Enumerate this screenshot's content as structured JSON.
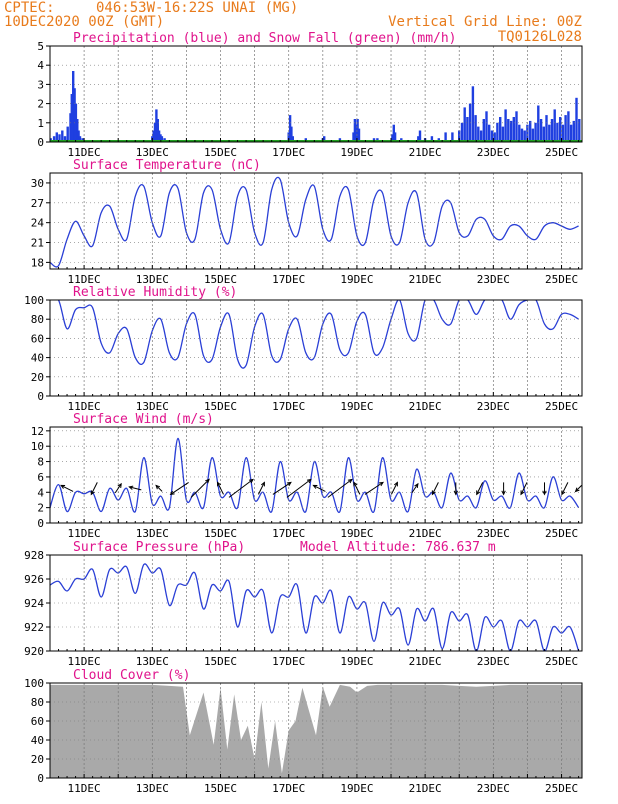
{
  "header": {
    "source": "CPTEC:",
    "location": "046:53W-16:22S  UNAI (MG)",
    "run_date": "10DEC2020 00Z (GMT)",
    "grid_note": "Vertical Grid Line: 00Z",
    "code": "TQ0126L028"
  },
  "colors": {
    "header": "#e87b1c",
    "title": "#e0138c",
    "precip": "#1f3fe0",
    "snow": "#1fa01f",
    "line": "#2a3fd6",
    "cloud": "#a9a9a9",
    "arrow": "#000000"
  },
  "chart_data": [
    {
      "id": "precip",
      "type": "bar",
      "title": "Precipitation (blue) and Snow Fall (green) (mm/h)",
      "x_unit": "day index from 10DEC 00Z",
      "xlim": [
        0,
        15.6
      ],
      "ylim": [
        0,
        5
      ],
      "yticks": [
        0,
        1,
        2,
        3,
        4,
        5
      ],
      "x": [
        0.02,
        0.12,
        0.2,
        0.28,
        0.36,
        0.44,
        0.52,
        0.6,
        0.64,
        0.68,
        0.72,
        0.76,
        0.8,
        0.84,
        0.88,
        0.96,
        1.04,
        1.12,
        1.3,
        3.0,
        3.04,
        3.08,
        3.12,
        3.16,
        3.2,
        3.24,
        3.28,
        3.36,
        3.44,
        4.0,
        5.2,
        7.0,
        7.04,
        7.08,
        7.12,
        7.5,
        8.0,
        8.04,
        8.5,
        8.9,
        8.94,
        8.98,
        9.02,
        9.06,
        9.5,
        9.6,
        10.04,
        10.08,
        10.12,
        10.3,
        10.8,
        10.85,
        11.0,
        11.2,
        11.4,
        11.6,
        11.8,
        12.0,
        12.08,
        12.16,
        12.24,
        12.32,
        12.4,
        12.48,
        12.56,
        12.64,
        12.72,
        12.8,
        12.88,
        12.96,
        13.04,
        13.12,
        13.2,
        13.28,
        13.36,
        13.44,
        13.52,
        13.6,
        13.68,
        13.76,
        13.84,
        13.92,
        14.0,
        14.08,
        14.16,
        14.24,
        14.32,
        14.4,
        14.48,
        14.56,
        14.64,
        14.72,
        14.8,
        14.88,
        14.96,
        15.04,
        15.12,
        15.2,
        15.28,
        15.36,
        15.44,
        15.52
      ],
      "precip": [
        0.2,
        0.3,
        0.5,
        0.4,
        0.6,
        0.3,
        0.8,
        1.5,
        2.5,
        3.7,
        2.8,
        2.0,
        1.2,
        0.6,
        0.3,
        0.2,
        0.1,
        0.1,
        0.1,
        0.3,
        0.6,
        1.0,
        1.7,
        1.2,
        0.6,
        0.4,
        0.3,
        0.2,
        0.1,
        0.1,
        0.1,
        0.5,
        1.4,
        0.8,
        0.3,
        0.2,
        0.2,
        0.3,
        0.2,
        0.5,
        1.2,
        0.9,
        1.2,
        0.7,
        0.2,
        0.2,
        0.4,
        0.9,
        0.5,
        0.2,
        0.3,
        0.6,
        0.2,
        0.3,
        0.2,
        0.5,
        0.5,
        0.6,
        1.0,
        1.8,
        1.3,
        2.0,
        2.9,
        1.4,
        0.8,
        0.6,
        1.2,
        1.6,
        0.9,
        0.6,
        0.5,
        1.0,
        1.3,
        0.8,
        1.7,
        1.2,
        1.1,
        1.3,
        1.6,
        0.9,
        0.7,
        0.6,
        0.9,
        1.1,
        0.7,
        1.0,
        1.9,
        1.2,
        0.8,
        1.4,
        0.9,
        1.2,
        1.7,
        1.0,
        1.3,
        0.9,
        1.4,
        1.6,
        0.9,
        1.1,
        2.3,
        1.2
      ],
      "snow": 0
    },
    {
      "id": "temperature",
      "type": "line",
      "title": "Surface Temperature (nC)",
      "xlim": [
        0,
        15.6
      ],
      "ylim": [
        17,
        31.5
      ],
      "yticks": [
        18,
        21,
        24,
        27,
        30
      ],
      "hours": [
        0,
        6,
        12,
        18
      ],
      "daily": [
        [
          18.0,
          17.5,
          21.5,
          24.2
        ],
        [
          22.0,
          20.5,
          25.5,
          26.5
        ],
        [
          23.0,
          21.5,
          28.0,
          29.5
        ],
        [
          24.0,
          22.0,
          28.5,
          29.2
        ],
        [
          22.5,
          21.5,
          28.5,
          29.0
        ],
        [
          23.0,
          21.0,
          28.0,
          29.0
        ],
        [
          22.5,
          21.0,
          29.0,
          30.5
        ],
        [
          24.0,
          22.0,
          27.5,
          29.5
        ],
        [
          23.0,
          21.5,
          28.0,
          29.0
        ],
        [
          22.0,
          21.0,
          27.5,
          28.5
        ],
        [
          22.0,
          21.0,
          27.0,
          28.5
        ],
        [
          21.5,
          21.0,
          26.5,
          27.0
        ],
        [
          22.5,
          22.0,
          24.5,
          24.5
        ],
        [
          22.0,
          21.5,
          23.5,
          23.5
        ],
        [
          22.0,
          21.5,
          23.5,
          24.0
        ],
        [
          23.5,
          23.0,
          23.5,
          23.5
        ]
      ]
    },
    {
      "id": "humidity",
      "type": "line",
      "title": "Relative Humidity (%)",
      "xlim": [
        0,
        15.6
      ],
      "ylim": [
        0,
        100
      ],
      "yticks": [
        0,
        20,
        40,
        60,
        80,
        100
      ],
      "hours": [
        0,
        6,
        12,
        18
      ],
      "daily": [
        [
          100,
          100,
          70,
          90
        ],
        [
          92,
          92,
          55,
          45
        ],
        [
          65,
          70,
          40,
          35
        ],
        [
          68,
          80,
          45,
          40
        ],
        [
          75,
          85,
          42,
          38
        ],
        [
          72,
          85,
          38,
          32
        ],
        [
          72,
          85,
          42,
          38
        ],
        [
          70,
          80,
          45,
          40
        ],
        [
          75,
          85,
          48,
          45
        ],
        [
          78,
          85,
          45,
          50
        ],
        [
          80,
          100,
          65,
          60
        ],
        [
          100,
          100,
          80,
          75
        ],
        [
          100,
          100,
          85,
          100
        ],
        [
          100,
          100,
          80,
          95
        ],
        [
          100,
          100,
          75,
          70
        ],
        [
          85,
          85,
          80,
          80
        ]
      ]
    },
    {
      "id": "wind",
      "type": "line",
      "title": "Surface Wind (m/s)",
      "xlim": [
        0,
        15.6
      ],
      "ylim": [
        0,
        12.5
      ],
      "yticks": [
        0,
        2,
        4,
        6,
        8,
        10,
        12
      ],
      "hours": [
        0,
        6,
        12,
        18
      ],
      "daily": [
        [
          2.0,
          5.0,
          1.5,
          4.0
        ],
        [
          3.8,
          4.0,
          1.5,
          4.5
        ],
        [
          3.0,
          4.5,
          1.5,
          8.5
        ],
        [
          2.5,
          3.5,
          2.0,
          11.0
        ],
        [
          3.0,
          4.0,
          2.0,
          8.5
        ],
        [
          3.5,
          4.0,
          2.0,
          8.5
        ],
        [
          3.0,
          4.0,
          1.5,
          8.0
        ],
        [
          3.0,
          4.0,
          1.5,
          8.0
        ],
        [
          3.5,
          4.0,
          1.5,
          8.5
        ],
        [
          3.0,
          4.0,
          1.5,
          8.5
        ],
        [
          3.0,
          4.0,
          1.5,
          7.0
        ],
        [
          3.5,
          4.0,
          2.0,
          6.5
        ],
        [
          3.0,
          3.5,
          2.0,
          5.5
        ],
        [
          3.0,
          3.5,
          2.0,
          6.5
        ],
        [
          3.0,
          3.5,
          2.0,
          6.0
        ],
        [
          3.0,
          3.5,
          2.0,
          6.0
        ]
      ],
      "arrows": [
        {
          "x": 0.5,
          "u": -2,
          "v": 1
        },
        {
          "x": 1.3,
          "u": -1,
          "v": -2
        },
        {
          "x": 2.0,
          "u": 1,
          "v": 1.5
        },
        {
          "x": 2.5,
          "u": -2,
          "v": 0.5
        },
        {
          "x": 3.2,
          "u": -1,
          "v": 1
        },
        {
          "x": 3.8,
          "u": -3,
          "v": -2
        },
        {
          "x": 4.4,
          "u": 3,
          "v": 3
        },
        {
          "x": 5.0,
          "u": -1,
          "v": 2
        },
        {
          "x": 5.6,
          "u": 4,
          "v": 3
        },
        {
          "x": 6.2,
          "u": 1,
          "v": 2
        },
        {
          "x": 6.8,
          "u": 3,
          "v": 2
        },
        {
          "x": 7.3,
          "u": 4,
          "v": 3
        },
        {
          "x": 7.9,
          "u": -2,
          "v": 1
        },
        {
          "x": 8.5,
          "u": 4,
          "v": 3
        },
        {
          "x": 9.0,
          "u": -1,
          "v": 2
        },
        {
          "x": 9.5,
          "u": 3,
          "v": 2
        },
        {
          "x": 10.1,
          "u": 1,
          "v": 2
        },
        {
          "x": 10.7,
          "u": 1,
          "v": 1.5
        },
        {
          "x": 11.3,
          "u": -1,
          "v": -2
        },
        {
          "x": 11.9,
          "u": 0,
          "v": -2
        },
        {
          "x": 12.6,
          "u": -1,
          "v": -2
        },
        {
          "x": 13.3,
          "u": 0,
          "v": -2
        },
        {
          "x": 13.9,
          "u": -1,
          "v": -2
        },
        {
          "x": 14.5,
          "u": 0,
          "v": -2
        },
        {
          "x": 15.1,
          "u": -1,
          "v": -2
        },
        {
          "x": 15.5,
          "u": -1,
          "v": -1
        }
      ]
    },
    {
      "id": "pressure",
      "type": "line",
      "title": "Surface Pressure (hPa)",
      "subtitle": "Model Altitude: 786.637  m",
      "xlim": [
        0,
        15.6
      ],
      "ylim": [
        920,
        928
      ],
      "yticks": [
        920,
        922,
        924,
        926,
        928
      ],
      "hours": [
        0,
        6,
        12,
        18
      ],
      "daily": [
        [
          925.5,
          925.8,
          925.0,
          926.0
        ],
        [
          926.0,
          926.8,
          924.5,
          926.8
        ],
        [
          926.5,
          927.0,
          924.8,
          927.2
        ],
        [
          926.5,
          926.8,
          923.8,
          925.5
        ],
        [
          925.5,
          926.5,
          923.5,
          925.5
        ],
        [
          925.0,
          925.8,
          922.0,
          925.0
        ],
        [
          924.5,
          925.0,
          921.5,
          924.5
        ],
        [
          924.5,
          925.5,
          921.5,
          924.5
        ],
        [
          924.0,
          925.0,
          921.5,
          924.5
        ],
        [
          923.5,
          924.0,
          920.8,
          924.0
        ],
        [
          923.0,
          923.5,
          920.5,
          923.5
        ],
        [
          922.5,
          923.5,
          920.2,
          923.2
        ],
        [
          922.5,
          923.0,
          920.0,
          922.8
        ],
        [
          922.0,
          922.5,
          920.0,
          922.5
        ],
        [
          922.0,
          922.5,
          920.0,
          922.0
        ],
        [
          921.5,
          922.0,
          920.0,
          922.5
        ]
      ]
    },
    {
      "id": "cloud",
      "type": "area",
      "title": "Cloud Cover (%)",
      "xlim": [
        0,
        15.6
      ],
      "ylim": [
        0,
        100
      ],
      "yticks": [
        0,
        20,
        40,
        60,
        80,
        100
      ],
      "x": [
        0,
        0.5,
        1.0,
        1.5,
        2.0,
        2.5,
        3.0,
        3.5,
        3.9,
        4.1,
        4.5,
        4.8,
        5.0,
        5.2,
        5.4,
        5.6,
        5.8,
        6.0,
        6.2,
        6.4,
        6.6,
        6.8,
        7.0,
        7.2,
        7.4,
        7.6,
        7.8,
        8.0,
        8.2,
        8.5,
        8.8,
        9.0,
        9.3,
        9.6,
        10.0,
        10.5,
        11.0,
        11.5,
        12.0,
        12.5,
        13.0,
        13.5,
        14.0,
        14.5,
        15.0,
        15.6
      ],
      "values": [
        98,
        98,
        98,
        98,
        98,
        98,
        98,
        97,
        96,
        45,
        90,
        35,
        95,
        30,
        88,
        40,
        55,
        20,
        80,
        10,
        60,
        5,
        50,
        60,
        95,
        70,
        45,
        96,
        75,
        98,
        96,
        90,
        97,
        98,
        98,
        98,
        98,
        98,
        97,
        96,
        97,
        98,
        98,
        98,
        98,
        98
      ]
    }
  ],
  "x_axis": {
    "day_labels": [
      "11DEC",
      "13DEC",
      "15DEC",
      "17DEC",
      "19DEC",
      "21DEC",
      "23DEC",
      "25DEC"
    ],
    "day_positions": [
      1,
      3,
      5,
      7,
      9,
      11,
      13,
      15
    ]
  }
}
